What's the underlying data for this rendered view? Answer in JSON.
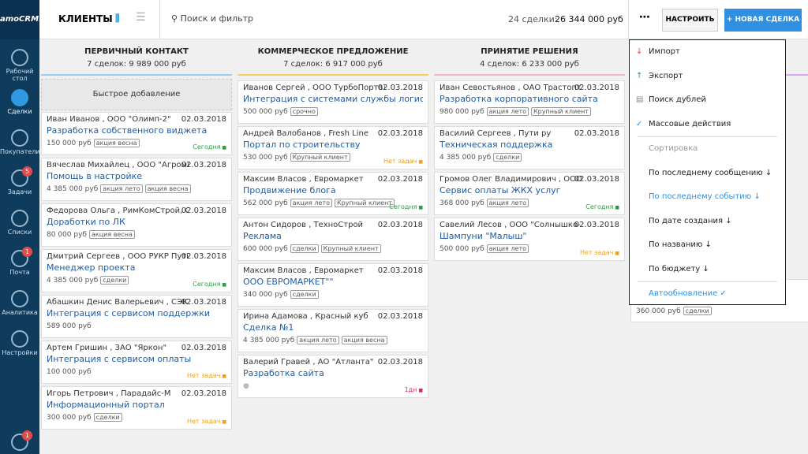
{
  "sidebar": {
    "logo": "amoCRM.",
    "items": [
      {
        "label": "Рабочий стол"
      },
      {
        "label": "Сделки",
        "active": true
      },
      {
        "label": "Покупатели"
      },
      {
        "label": "Задачи",
        "badge": "5"
      },
      {
        "label": "Списки"
      },
      {
        "label": "Почта",
        "badge": "1"
      },
      {
        "label": "Аналитика"
      },
      {
        "label": "Настройки"
      }
    ],
    "chat_badge": "1"
  },
  "header": {
    "title": "КЛИЕНТЫ",
    "search": "Поиск и фильтр",
    "summary_count": "24 сделки:",
    "summary_total": "26 344 000 руб",
    "settings_button": "НАСТРОИТЬ",
    "new_button": "НОВАЯ СДЕЛКА"
  },
  "columns": [
    {
      "title": "ПЕРВИЧНЫЙ КОНТАКТ",
      "summary": "7 сделок: 9 989 000 руб",
      "color": "#99ccee",
      "quick_add": "Быстрое добавление",
      "cards": [
        {
          "contact": "Иван Иванов , ООО \"Олимп-2\"",
          "date": "02.03.2018",
          "name": "Разработка собственного виджета",
          "price": "150 000 руб",
          "tags": [
            "акция весна"
          ],
          "status": {
            "text": "Сегодня",
            "color": "#2e9e44"
          }
        },
        {
          "contact": "Вячеслав Михайлец , ООО \"Агромир\"",
          "date": "02.03.2018",
          "name": "Помощь в настройке",
          "price": "4 385 000 руб",
          "tags": [
            "акция лето",
            "акция весна"
          ]
        },
        {
          "contact": "Федорова Ольга , РимКомСтрой, ООО",
          "date": "02.03.2018",
          "name": "Доработки по ЛК",
          "price": "80 000 руб",
          "tags": [
            "акция весна"
          ]
        },
        {
          "contact": "Дмитрий Сергеев , ООО РУКР Пути ру",
          "date": "02.03.2018",
          "name": "Менеджер проекта",
          "price": "4 385 000 руб",
          "tags": [
            "сделки"
          ],
          "status": {
            "text": "Сегодня",
            "color": "#2e9e44"
          }
        },
        {
          "contact": "Абашкин Денис Валерьевич , СЭК ООО",
          "date": "02.03.2018",
          "name": "Интеграция с сервисом поддержки",
          "price": "589 000 руб",
          "tags": []
        },
        {
          "contact": "Артем Гришин , ЗАО \"Яркон\"",
          "date": "02.03.2018",
          "name": "Интеграция с сервисом оплаты",
          "price": "100 000 руб",
          "tags": [],
          "status": {
            "text": "Нет задач",
            "color": "#f0a020"
          }
        },
        {
          "contact": "Игорь Петрович , Парадайс-М",
          "date": "02.03.2018",
          "name": "Информационный портал",
          "price": "300 000 руб",
          "tags": [
            "сделки"
          ],
          "status": {
            "text": "Нет задач",
            "color": "#f0a020"
          }
        }
      ]
    },
    {
      "title": "КОММЕРЧЕСКОЕ ПРЕДЛОЖЕНИЕ",
      "summary": "7 сделок: 6 917 000 руб",
      "color": "#f2d25c",
      "cards": [
        {
          "contact": "Иванов Сергей , ООО ТурбоПортал",
          "date": "02.03.2018",
          "name": "Интеграция с системами службы логистики",
          "price": "500 000 руб",
          "tags": [
            "срочно"
          ]
        },
        {
          "contact": "Андрей Валобанов , Fresh Line",
          "date": "02.03.2018",
          "name": "Портал по строительству",
          "price": "530 000 руб",
          "tags": [
            "Крупный клиент"
          ],
          "status": {
            "text": "Нет задач",
            "color": "#f0a020"
          }
        },
        {
          "contact": "Максим Власов , Евромаркет",
          "date": "02.03.2018",
          "name": "Продвижение блога",
          "price": "562 000 руб",
          "tags": [
            "акция лето",
            "Крупный клиент"
          ],
          "status": {
            "text": "Сегодня",
            "color": "#2e9e44"
          }
        },
        {
          "contact": "Антон Сидоров , ТехноСтрой",
          "date": "02.03.2018",
          "name": "Реклама",
          "price": "600 000 руб",
          "tags": [
            "сделки",
            "Крупный клиент"
          ]
        },
        {
          "contact": "Максим Власов , Евромаркет",
          "date": "02.03.2018",
          "name": "ООО ЕВРОМАРКЕТ\"\"",
          "price": "340 000 руб",
          "tags": [
            "сделки"
          ]
        },
        {
          "contact": "Ирина Адамова , Красный куб",
          "date": "02.03.2018",
          "name": "Сделка №1",
          "price": "4 385 000 руб",
          "tags": [
            "акция лето",
            "акция весна"
          ]
        },
        {
          "contact": "Валерий Гравей , АО \"Атланта\"",
          "date": "02.03.2018",
          "name": "Разработка сайта",
          "tags": [],
          "status": {
            "text": "1дн",
            "color": "#e0245a"
          }
        }
      ]
    },
    {
      "title": "ПРИНЯТИЕ РЕШЕНИЯ",
      "summary": "4 сделок: 6 233 000 руб",
      "color": "#f5b5c5",
      "cards": [
        {
          "contact": "Иван Севостьянов , ОАО Трастопт",
          "date": "02.03.2018",
          "name": "Разработка корпоративного сайта",
          "price": "980 000 руб",
          "tags": [
            "акция лето",
            "Крупный клиент"
          ]
        },
        {
          "contact": "Василий Сергеев , Пути ру",
          "date": "02.03.2018",
          "name": "Техническая поддержка",
          "price": "4 385 000 руб",
          "tags": [
            "сделки"
          ]
        },
        {
          "contact": "Громов Олег Владимирович , ООО ЖилСтройСервис\"\"",
          "date": "02.03.2018",
          "name": "Сервис оплаты ЖКХ услуг",
          "price": "368 000 руб",
          "tags": [
            "акция лето"
          ],
          "status": {
            "text": "Сегодня",
            "color": "#2e9e44"
          }
        },
        {
          "contact": "Савелий Лесов , ООО \"Солнышко-2\"",
          "date": "02.03.2018",
          "name": "Шампуни \"Малыш\"",
          "price": "500 000 руб",
          "tags": [
            "акция лето"
          ],
          "status": {
            "text": "Нет задач",
            "color": "#f0a020"
          }
        }
      ]
    },
    {
      "color": "#d9a8f0",
      "cards": [
        {
          "price": "360 000 руб",
          "tags": [
            "сделки"
          ]
        }
      ]
    }
  ],
  "dropdown": {
    "actions": [
      "Импорт",
      "Экспорт",
      "Поиск дублей",
      "Массовые действия"
    ],
    "sort_title": "Сортировка",
    "sort_options": [
      "По последнему сообщению",
      "По последнему событию",
      "По дате создания",
      "По названию",
      "По бюджету"
    ],
    "active_sort": 1,
    "autoupdate": "Автообновление"
  }
}
